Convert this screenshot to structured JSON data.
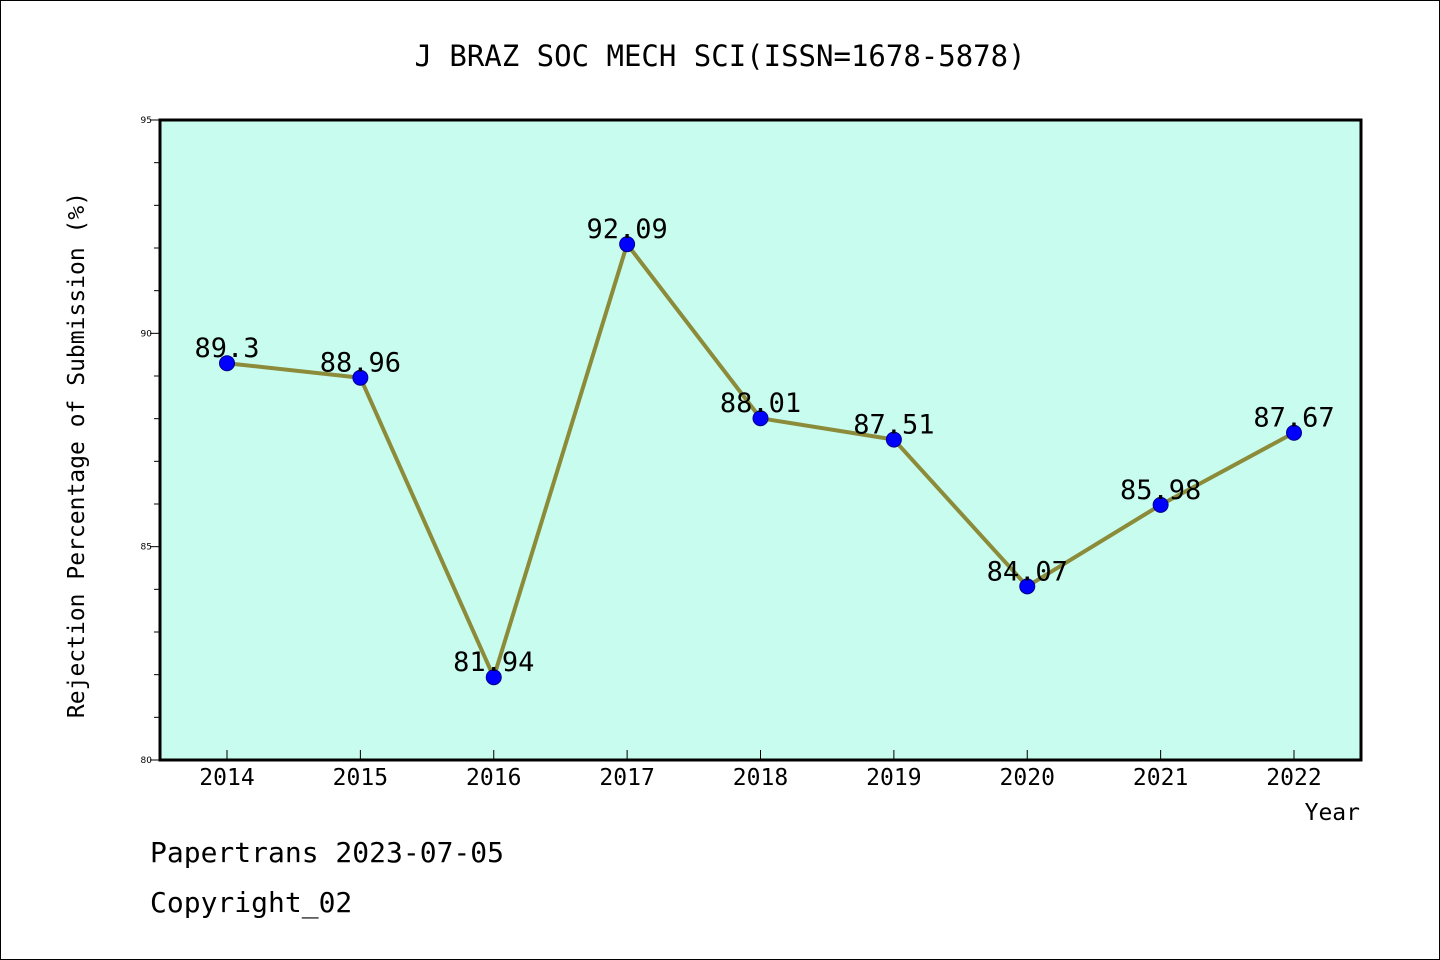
{
  "chart_data": {
    "type": "line",
    "title": "J BRAZ SOC MECH SCI(ISSN=1678-5878)",
    "xlabel": "Year",
    "ylabel": "Rejection Percentage of Submission (%)",
    "categories": [
      "2014",
      "2015",
      "2016",
      "2017",
      "2018",
      "2019",
      "2020",
      "2021",
      "2022"
    ],
    "values": [
      89.3,
      88.96,
      81.94,
      92.09,
      88.01,
      87.51,
      84.07,
      85.98,
      87.67
    ],
    "data_labels": [
      "89.3",
      "88.96",
      "81.94",
      "92.09",
      "88.01",
      "87.51",
      "84.07",
      "85.98",
      "87.67"
    ],
    "ylim": [
      80,
      95
    ],
    "yticks": [
      "80",
      "85",
      "90",
      "95"
    ],
    "grid": false,
    "colors": {
      "plot_background": "#c8fcee",
      "line": "#8b8b3a",
      "marker": "#0000ff"
    }
  },
  "footer": {
    "line1": "Papertrans 2023-07-05",
    "line2": "Copyright_02"
  }
}
